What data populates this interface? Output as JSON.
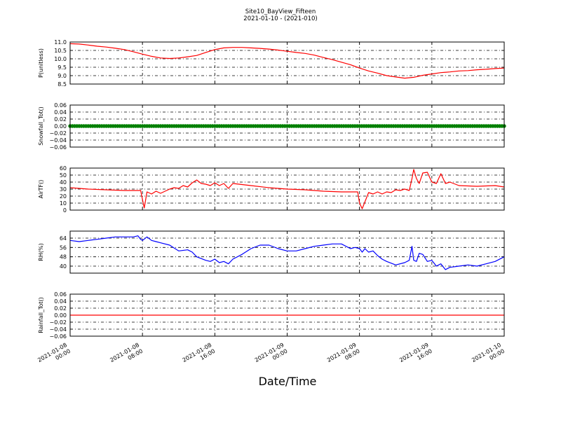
{
  "figure": {
    "title": "Site10_BayView_Fifteen",
    "subtitle": "2021-01-10 - (2021-010)",
    "xlabel": "Date/Time"
  },
  "x_ticks": [
    {
      "t": 0,
      "line1": "2021-01-08",
      "line2": "00:00"
    },
    {
      "t": 8,
      "line1": "2021-01-08",
      "line2": "08:00"
    },
    {
      "t": 16,
      "line1": "2021-01-08",
      "line2": "16:00"
    },
    {
      "t": 24,
      "line1": "2021-01-09",
      "line2": "00:00"
    },
    {
      "t": 32,
      "line1": "2021-01-09",
      "line2": "08:00"
    },
    {
      "t": 40,
      "line1": "2021-01-09",
      "line2": "16:00"
    },
    {
      "t": 48,
      "line1": "2021-01-10",
      "line2": "00:00"
    }
  ],
  "chart_data": [
    {
      "type": "line",
      "ylabel": "P(unitless)",
      "ylim": [
        8.5,
        11.0
      ],
      "yticks": [
        8.5,
        9.0,
        9.5,
        10.0,
        10.5,
        11.0
      ],
      "tick_labels": [
        "8.5",
        "9.0",
        "9.5",
        "10.0",
        "10.5",
        "11.0"
      ],
      "grid": true,
      "color": "#ff0000",
      "x": [
        0,
        1,
        2,
        3,
        4,
        5,
        6,
        7,
        8,
        9,
        10,
        11,
        12,
        13,
        14,
        15,
        16,
        17,
        18,
        19,
        20,
        21,
        22,
        23,
        24,
        25,
        26,
        27,
        28,
        29,
        30,
        31,
        32,
        33,
        34,
        35,
        36,
        37,
        38,
        39,
        40,
        41,
        42,
        43,
        44,
        45,
        46,
        47,
        48
      ],
      "values": [
        10.9,
        10.88,
        10.82,
        10.75,
        10.7,
        10.63,
        10.55,
        10.42,
        10.28,
        10.15,
        10.05,
        10.02,
        10.05,
        10.12,
        10.2,
        10.38,
        10.55,
        10.65,
        10.68,
        10.68,
        10.65,
        10.62,
        10.58,
        10.52,
        10.45,
        10.38,
        10.32,
        10.22,
        10.08,
        9.95,
        9.8,
        9.65,
        9.45,
        9.28,
        9.15,
        9.0,
        8.92,
        8.85,
        8.9,
        9.02,
        9.1,
        9.18,
        9.22,
        9.28,
        9.3,
        9.35,
        9.38,
        9.42,
        9.45
      ]
    },
    {
      "type": "line",
      "ylabel": "Snowfall_Tot()",
      "ylim": [
        -0.06,
        0.06
      ],
      "yticks": [
        -0.06,
        -0.04,
        -0.02,
        0.0,
        0.02,
        0.04,
        0.06
      ],
      "tick_labels": [
        "−0.06",
        "−0.04",
        "−0.02",
        "0.00",
        "0.02",
        "0.04",
        "0.06"
      ],
      "grid": true,
      "color": "#008000",
      "marker": "circle",
      "x": [
        0,
        48
      ],
      "values": [
        0,
        0
      ]
    },
    {
      "type": "line",
      "ylabel": "AirTF()",
      "ylim": [
        0,
        60
      ],
      "yticks": [
        0,
        10,
        20,
        30,
        40,
        50,
        60
      ],
      "tick_labels": [
        "0",
        "10",
        "20",
        "30",
        "40",
        "50",
        "60"
      ],
      "grid": true,
      "color": "#ff0000",
      "x": [
        0,
        2,
        4,
        6,
        7.8,
        8.0,
        8.2,
        8.5,
        9,
        9.5,
        10,
        11,
        11.5,
        12,
        12.5,
        13,
        13.5,
        14,
        14.5,
        15,
        15.5,
        16,
        16.5,
        17,
        17.5,
        18,
        20,
        22,
        24,
        26,
        28,
        30,
        31.8,
        32.0,
        32.3,
        33,
        33.5,
        34,
        34.5,
        35,
        35.5,
        36,
        36.5,
        37,
        37.5,
        37.8,
        38,
        38.3,
        38.6,
        39,
        39.5,
        40,
        40.5,
        41,
        41.5,
        42,
        43,
        45,
        47,
        48
      ],
      "values": [
        32,
        30,
        29,
        28,
        28,
        15,
        3,
        26,
        23,
        27,
        24,
        30,
        32,
        31,
        35,
        33,
        39,
        43,
        38,
        37,
        35,
        39,
        35,
        38,
        31,
        38,
        35,
        32,
        30,
        29,
        27,
        26,
        26,
        10,
        2,
        25,
        23,
        26,
        23,
        26,
        25,
        29,
        28,
        30,
        28,
        45,
        58,
        45,
        38,
        53,
        54,
        40,
        38,
        52,
        38,
        40,
        35,
        34,
        35,
        33
      ]
    },
    {
      "type": "line",
      "ylabel": "RH(%)",
      "ylim": [
        34,
        70
      ],
      "yticks": [
        40,
        48,
        56,
        64
      ],
      "tick_labels": [
        "40",
        "48",
        "56",
        "64"
      ],
      "grid": true,
      "color": "#0000ff",
      "x": [
        0,
        1,
        2,
        3,
        4,
        5,
        6,
        7,
        7.5,
        7.8,
        8,
        8.5,
        9,
        9.5,
        10,
        11,
        12,
        13,
        13.5,
        14,
        15,
        15.5,
        16,
        16.5,
        17,
        17.5,
        18,
        19,
        20,
        21,
        22,
        23,
        24,
        25,
        26,
        27,
        28,
        29,
        30,
        31,
        31.5,
        32,
        32.3,
        32.6,
        33,
        33.5,
        34,
        34.5,
        35,
        36,
        37,
        37.5,
        37.8,
        38,
        38.3,
        38.6,
        39,
        39.5,
        40,
        40.5,
        41,
        41.5,
        42,
        43,
        44,
        45,
        46,
        47,
        48
      ],
      "values": [
        62,
        61,
        62,
        63,
        64,
        65,
        65,
        65,
        66,
        63,
        62,
        65,
        62,
        61,
        60,
        58,
        53,
        54,
        52,
        48,
        45,
        44,
        46,
        43,
        44,
        42,
        46,
        50,
        55,
        58,
        58,
        55,
        53,
        53,
        55,
        57,
        58,
        59,
        59,
        55,
        56,
        55,
        52,
        55,
        52,
        53,
        49,
        46,
        44,
        41,
        43,
        45,
        57,
        45,
        44,
        51,
        50,
        44,
        45,
        40,
        42,
        37,
        39,
        40,
        41,
        40,
        42,
        44,
        48
      ]
    },
    {
      "type": "line",
      "ylabel": "Rainfall_Tot()",
      "ylim": [
        -0.06,
        0.06
      ],
      "yticks": [
        -0.06,
        -0.04,
        -0.02,
        0.0,
        0.02,
        0.04,
        0.06
      ],
      "tick_labels": [
        "−0.06",
        "−0.04",
        "−0.02",
        "0.00",
        "0.02",
        "0.04",
        "0.06"
      ],
      "grid": true,
      "color": "#ff0000",
      "x": [
        0,
        48
      ],
      "values": [
        0,
        0
      ]
    }
  ]
}
